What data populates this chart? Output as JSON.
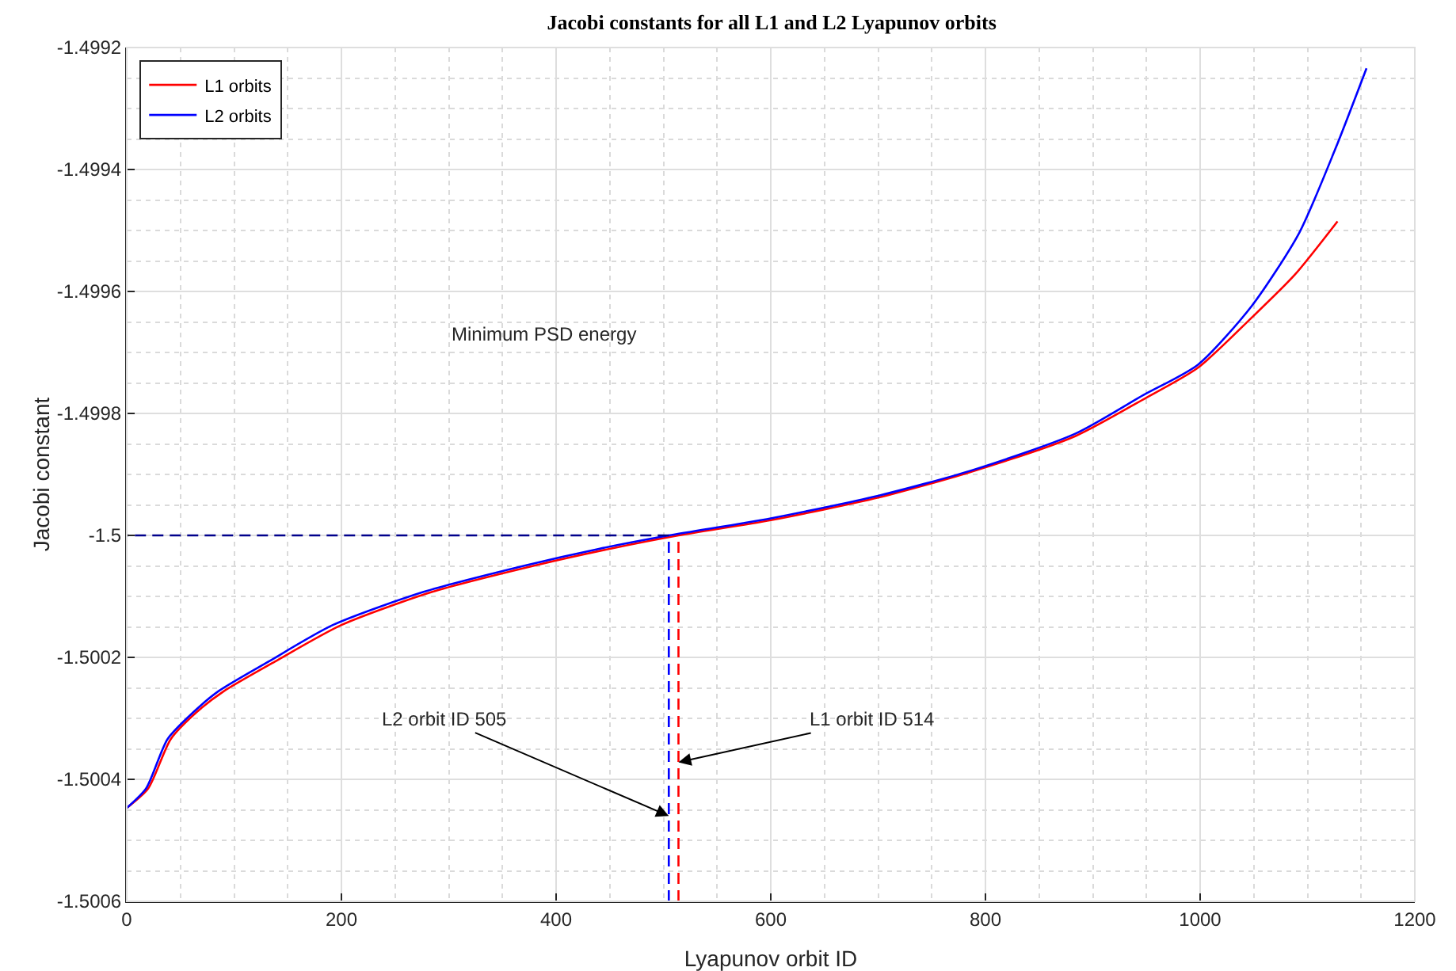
{
  "chart_data": {
    "type": "line",
    "title": "Jacobi constants for all L1 and L2 Lyapunov orbits",
    "xlabel": "Lyapunov orbit ID",
    "ylabel": "Jacobi constant",
    "xlim": [
      0,
      1200
    ],
    "xticks": [
      0,
      200,
      400,
      600,
      800,
      1000,
      1200
    ],
    "ylim": [
      -1.5006,
      -1.4992
    ],
    "yticks": [
      -1.5006,
      -1.5004,
      -1.5002,
      -1.5,
      -1.4998,
      -1.4996,
      -1.4994,
      -1.4992
    ],
    "grid": true,
    "legend": "top left",
    "marker": "none",
    "line_style": "solid",
    "series": [
      {
        "name": "L1 orbits",
        "color": "#ff0000",
        "x": [
          0,
          20,
          41,
          65,
          90,
          138,
          200,
          284,
          381,
          450,
          514,
          600,
          700,
          786,
          884,
          947,
          998,
          1048,
          1088,
          1128
        ],
        "values": [
          -1.500447,
          -1.500415,
          -1.500334,
          -1.50029,
          -1.500256,
          -1.500207,
          -1.500147,
          -1.500093,
          -1.500049,
          -1.500022,
          -1.5,
          -1.499975,
          -1.499938,
          -1.499896,
          -1.499837,
          -1.499777,
          -1.499725,
          -1.499643,
          -1.499573,
          -1.499485
        ]
      },
      {
        "name": "L2 orbits",
        "color": "#0000ff",
        "x": [
          0,
          18,
          38,
          62,
          85,
          132,
          192,
          276,
          372,
          440,
          505,
          600,
          700,
          786,
          884,
          947,
          998,
          1048,
          1092,
          1126,
          1155
        ],
        "values": [
          -1.500447,
          -1.500415,
          -1.500334,
          -1.50029,
          -1.500256,
          -1.500207,
          -1.500147,
          -1.500093,
          -1.500049,
          -1.500022,
          -1.5,
          -1.499972,
          -1.499935,
          -1.499894,
          -1.499833,
          -1.49977,
          -1.49972,
          -1.499624,
          -1.499505,
          -1.499366,
          -1.499234
        ]
      },
      {
        "color": "#00008b",
        "line_style": "dashed",
        "x": [
          505,
          0
        ],
        "values": [
          -1.5,
          -1.5
        ]
      },
      {
        "color": "#0000ff",
        "line_style": "dashed",
        "x": [
          505,
          505
        ],
        "values": [
          -1.5006,
          -1.5
        ]
      },
      {
        "color": "#ff0000",
        "line_style": "dashed",
        "x": [
          514,
          514
        ],
        "values": [
          -1.5006,
          -1.5
        ]
      }
    ],
    "annotations": [
      "Minimum PSD energy",
      {
        "text": "L2 orbit ID 505",
        "x": 505,
        "y": -1.50046
      },
      {
        "text": "L1 orbit ID 514",
        "x": 514,
        "y": -1.500372
      }
    ]
  }
}
